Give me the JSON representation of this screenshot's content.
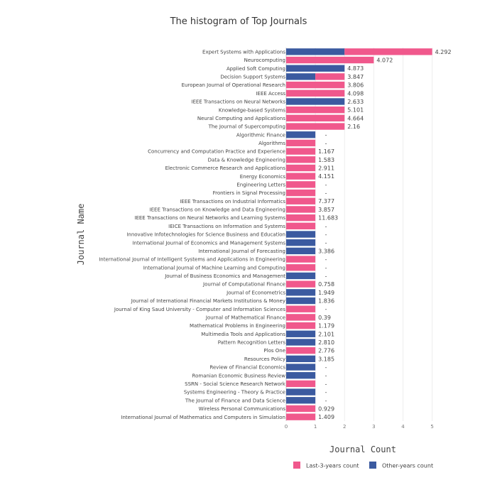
{
  "chart_data": {
    "type": "bar",
    "orientation": "horizontal",
    "barmode": "stack",
    "title": "The histogram of  Top Journals",
    "xlabel": "Journal Count",
    "ylabel": "Journal Name",
    "xlim": [
      0,
      5.3
    ],
    "xticks": [
      0,
      1,
      2,
      3,
      4,
      5
    ],
    "grid": true,
    "legend_position": "bottom-right",
    "colors": {
      "last3": "#f0588c",
      "other": "#3b5aa0"
    },
    "series": [
      {
        "name": "Last-3-years count",
        "key": "last3"
      },
      {
        "name": "Other-years count",
        "key": "other"
      }
    ],
    "rows": [
      {
        "journal": "Expert Systems with Applications",
        "other": 2,
        "last3": 3,
        "label": "4.292"
      },
      {
        "journal": "Neurocomputing",
        "other": 0,
        "last3": 3,
        "label": "4.072"
      },
      {
        "journal": "Applied Soft Computing",
        "other": 2,
        "last3": 0,
        "label": "4.873"
      },
      {
        "journal": "Decision Support Systems",
        "other": 1,
        "last3": 1,
        "label": "3.847"
      },
      {
        "journal": "European Journal of Operational Research",
        "other": 0,
        "last3": 2,
        "label": "3.806"
      },
      {
        "journal": "IEEE Access",
        "other": 0,
        "last3": 2,
        "label": "4.098"
      },
      {
        "journal": "IEEE Transactions on Neural Networks",
        "other": 2,
        "last3": 0,
        "label": "2.633"
      },
      {
        "journal": "Knowledge-based Systems",
        "other": 0,
        "last3": 2,
        "label": "5.101"
      },
      {
        "journal": "Neural Computing and Applications",
        "other": 0,
        "last3": 2,
        "label": "4.664"
      },
      {
        "journal": "The Journal of Supercomputing",
        "other": 0,
        "last3": 2,
        "label": "2.16"
      },
      {
        "journal": "Algorithmic Finance",
        "other": 1,
        "last3": 0,
        "label": "-"
      },
      {
        "journal": "Algorithms",
        "other": 0,
        "last3": 1,
        "label": "-"
      },
      {
        "journal": "Concurrency and Computation Practice and Experience",
        "other": 0,
        "last3": 1,
        "label": "1.167"
      },
      {
        "journal": "Data & Knowledge Engineering",
        "other": 0,
        "last3": 1,
        "label": "1.583"
      },
      {
        "journal": "Electronic Commerce Research and Applications",
        "other": 0,
        "last3": 1,
        "label": "2.911"
      },
      {
        "journal": "Energy Economics",
        "other": 0,
        "last3": 1,
        "label": "4.151"
      },
      {
        "journal": "Engineering Letters",
        "other": 0,
        "last3": 1,
        "label": "-"
      },
      {
        "journal": "Frontiers in Signal Processing",
        "other": 0,
        "last3": 1,
        "label": "-"
      },
      {
        "journal": "IEEE Transactions on Industrial Informatics",
        "other": 0,
        "last3": 1,
        "label": "7.377"
      },
      {
        "journal": "IEEE Transactions on Knowledge and Data Engineering",
        "other": 0,
        "last3": 1,
        "label": "3.857"
      },
      {
        "journal": "IEEE Transactions on Neural Networks and Learning Systems",
        "other": 0,
        "last3": 1,
        "label": "11.683"
      },
      {
        "journal": "IEICE Transactions on Information and Systems",
        "other": 0,
        "last3": 1,
        "label": "-"
      },
      {
        "journal": "Innovative Infotechnologies for Science Business and Education",
        "other": 1,
        "last3": 0,
        "label": "-"
      },
      {
        "journal": "International Journal of Economics and Management Systems",
        "other": 1,
        "last3": 0,
        "label": "-"
      },
      {
        "journal": "International Journal of Forecasting",
        "other": 1,
        "last3": 0,
        "label": "3.386"
      },
      {
        "journal": "International Journal of Intelligent Systems and Applications in Engineering",
        "other": 0,
        "last3": 1,
        "label": "-"
      },
      {
        "journal": "International Journal of Machine Learning and Computing",
        "other": 0,
        "last3": 1,
        "label": "-"
      },
      {
        "journal": "Journal of Business Economics and Management",
        "other": 1,
        "last3": 0,
        "label": "-"
      },
      {
        "journal": "Journal of Computational Finance",
        "other": 0,
        "last3": 1,
        "label": "0.758"
      },
      {
        "journal": "Journal of Econometrics",
        "other": 1,
        "last3": 0,
        "label": "1.949"
      },
      {
        "journal": "Journal of International Financial Markets Institutions & Money",
        "other": 1,
        "last3": 0,
        "label": "1.836"
      },
      {
        "journal": "Journal of King Saud University - Computer and Information Sciences",
        "other": 0,
        "last3": 1,
        "label": "-"
      },
      {
        "journal": "Journal of Mathematical Finance",
        "other": 0,
        "last3": 1,
        "label": "0.39"
      },
      {
        "journal": "Mathematical Problems in Engineering",
        "other": 0,
        "last3": 1,
        "label": "1.179"
      },
      {
        "journal": "Multimedia Tools and Applications",
        "other": 1,
        "last3": 0,
        "label": "2.101"
      },
      {
        "journal": "Pattern Recognition Letters",
        "other": 1,
        "last3": 0,
        "label": "2.810"
      },
      {
        "journal": "Plos One",
        "other": 0,
        "last3": 1,
        "label": "2.776"
      },
      {
        "journal": "Resources Policy",
        "other": 1,
        "last3": 0,
        "label": "3.185"
      },
      {
        "journal": "Review of Financial Economics",
        "other": 1,
        "last3": 0,
        "label": "-"
      },
      {
        "journal": "Romanian Economic Business Review",
        "other": 1,
        "last3": 0,
        "label": "-"
      },
      {
        "journal": "SSRN - Social Science Research Network",
        "other": 0,
        "last3": 1,
        "label": "-"
      },
      {
        "journal": "Systems Engineering - Theory & Practice",
        "other": 1,
        "last3": 0,
        "label": "-"
      },
      {
        "journal": "The Journal of Finance and Data Science",
        "other": 1,
        "last3": 0,
        "label": "-"
      },
      {
        "journal": "Wireless Personal Communications",
        "other": 0,
        "last3": 1,
        "label": "0.929"
      },
      {
        "journal": "International Journal of Mathematics and Computers in Simulation",
        "other": 0,
        "last3": 1,
        "label": "1.409"
      }
    ]
  }
}
